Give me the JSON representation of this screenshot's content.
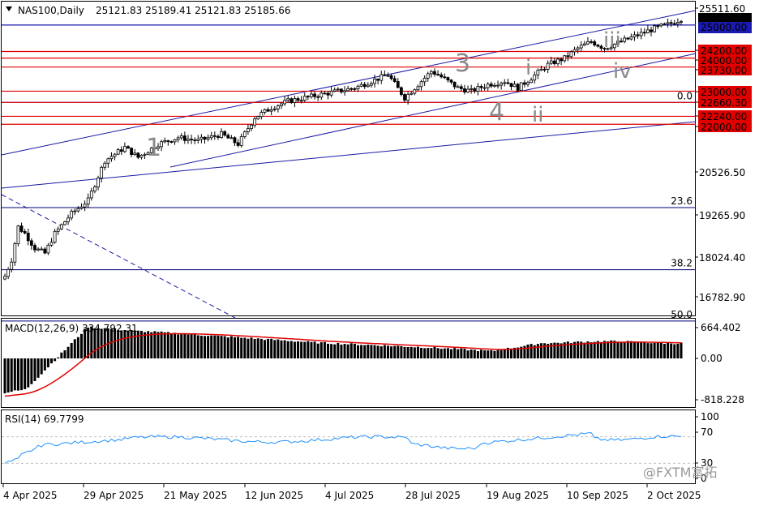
{
  "header": {
    "symbol_timeframe": "NAS100,Daily",
    "ohlc": "25121.83 25189.41 25121.83 25185.66"
  },
  "colors": {
    "bull": "#ffffff",
    "bear": "#000000",
    "channel": "#1a1aa6",
    "resistance": "#e00000",
    "fib": "#00007a",
    "macd_signal": "#e00000",
    "rsi": "#1e90ff",
    "price_tag": "#1a1ab0"
  },
  "price_axis": {
    "ticks": [
      "25511.60",
      "24200.00",
      "24000.00",
      "23730.00",
      "23000.00",
      "22660.30",
      "22240.00",
      "22000.00",
      "20526.50",
      "19265.90",
      "18024.40",
      "16782.90"
    ],
    "current_tag": "25185.66",
    "blue_tag": "25000.00"
  },
  "levels": [
    {
      "price": 24200,
      "label": "24200.00"
    },
    {
      "price": 24000,
      "label": "24000.00"
    },
    {
      "price": 23730,
      "label": "23730.00"
    },
    {
      "price": 23000,
      "label": "23000.00"
    },
    {
      "price": 22660.3,
      "label": "22660.30"
    },
    {
      "price": 22240,
      "label": "22240.00"
    },
    {
      "price": 22000,
      "label": "22000.00"
    }
  ],
  "fib_levels": [
    {
      "label": "0.0",
      "price": 22660
    },
    {
      "label": "23.6",
      "price": 19480
    },
    {
      "label": "38.2",
      "price": 17600
    },
    {
      "label": "50.0",
      "price": 16050
    }
  ],
  "wave_labels": [
    {
      "text": "1",
      "big": true
    },
    {
      "text": "3",
      "big": true
    },
    {
      "text": "4",
      "big": true
    },
    {
      "text": "i",
      "big": false
    },
    {
      "text": "ii",
      "big": false
    },
    {
      "text": "iii",
      "big": false
    },
    {
      "text": "iv",
      "big": false
    }
  ],
  "macd": {
    "label": "MACD(12,26,9) 334.792 31",
    "ticks": [
      "664.402",
      "0.00",
      "-818.228"
    ]
  },
  "rsi": {
    "label": "RSI(14) 69.7799",
    "ticks": [
      "100",
      "70",
      "30",
      "0"
    ]
  },
  "x_axis": {
    "labels": [
      "4 Apr 2025",
      "29 Apr 2025",
      "21 May 2025",
      "12 Jun 2025",
      "4 Jul 2025",
      "28 Jul 2025",
      "19 Aug 2025",
      "10 Sep 2025",
      "2 Oct 2025"
    ]
  },
  "watermark": "@FXTM富拓",
  "chart_data": {
    "type": "candlestick",
    "title": "NAS100,Daily",
    "ylim": [
      16100,
      25700
    ],
    "x": [
      "4 Apr 2025",
      "29 Apr 2025",
      "21 May 2025",
      "12 Jun 2025",
      "4 Jul 2025",
      "28 Jul 2025",
      "19 Aug 2025",
      "10 Sep 2025",
      "2 Oct 2025"
    ],
    "close_path": [
      [
        0,
        17400
      ],
      [
        2,
        17900
      ],
      [
        4,
        18900
      ],
      [
        6,
        18700
      ],
      [
        9,
        18250
      ],
      [
        12,
        18100
      ],
      [
        15,
        18700
      ],
      [
        20,
        19300
      ],
      [
        25,
        19700
      ],
      [
        30,
        20900
      ],
      [
        36,
        21300
      ],
      [
        40,
        21000
      ],
      [
        46,
        21400
      ],
      [
        52,
        21600
      ],
      [
        58,
        21500
      ],
      [
        65,
        21700
      ],
      [
        70,
        21400
      ],
      [
        75,
        22200
      ],
      [
        80,
        22500
      ],
      [
        85,
        22700
      ],
      [
        90,
        22800
      ],
      [
        95,
        22900
      ],
      [
        100,
        23000
      ],
      [
        105,
        23100
      ],
      [
        110,
        23300
      ],
      [
        115,
        23500
      ],
      [
        120,
        22800
      ],
      [
        124,
        23200
      ],
      [
        128,
        23600
      ],
      [
        130,
        23500
      ],
      [
        133,
        23300
      ],
      [
        136,
        23100
      ],
      [
        140,
        23000
      ],
      [
        145,
        23200
      ],
      [
        150,
        23300
      ],
      [
        154,
        23100
      ],
      [
        158,
        23400
      ],
      [
        163,
        23800
      ],
      [
        168,
        24000
      ],
      [
        172,
        24300
      ],
      [
        176,
        24500
      ],
      [
        180,
        24300
      ],
      [
        185,
        24500
      ],
      [
        190,
        24700
      ],
      [
        195,
        24900
      ],
      [
        200,
        25050
      ],
      [
        203,
        25185.66
      ]
    ],
    "macd_histogram_range": [
      -818.228,
      664.402
    ],
    "rsi_last": 69.7799
  }
}
